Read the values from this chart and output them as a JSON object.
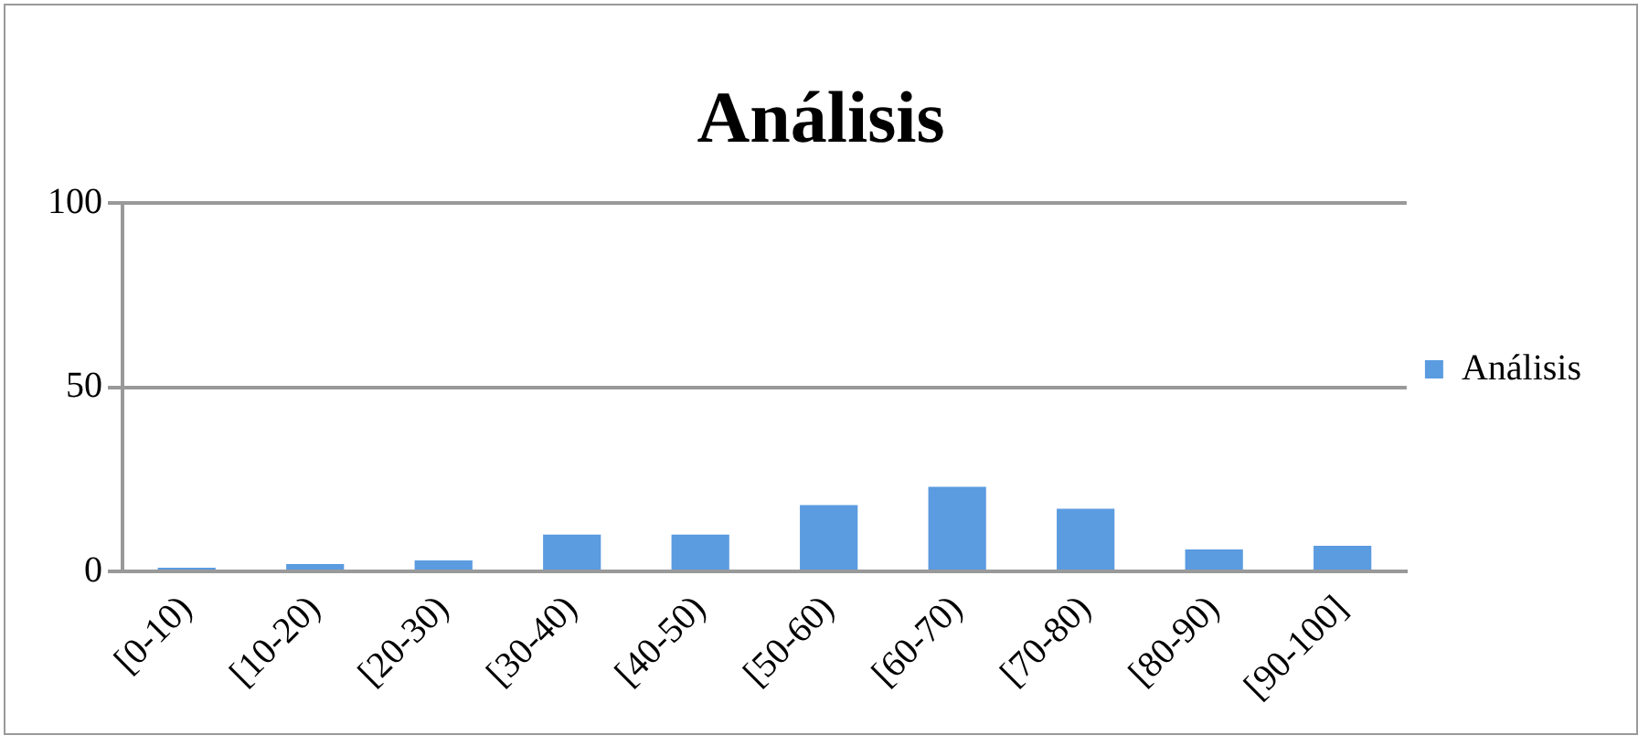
{
  "chart_data": {
    "type": "bar",
    "title": "Análisis",
    "categories": [
      "[0-10)",
      "[10-20)",
      "[20-30)",
      "[30-40)",
      "[40-50)",
      "[50-60)",
      "[60-70)",
      "[70-80)",
      "[80-90)",
      "[90-100]"
    ],
    "series": [
      {
        "name": "Análisis",
        "color": "#5b9be0",
        "values": [
          1,
          2,
          3,
          10,
          10,
          18,
          23,
          17,
          6,
          7
        ]
      }
    ],
    "ylim": [
      0,
      100
    ],
    "yticks": [
      0,
      50,
      100
    ],
    "grid": "y",
    "legend": "right"
  }
}
